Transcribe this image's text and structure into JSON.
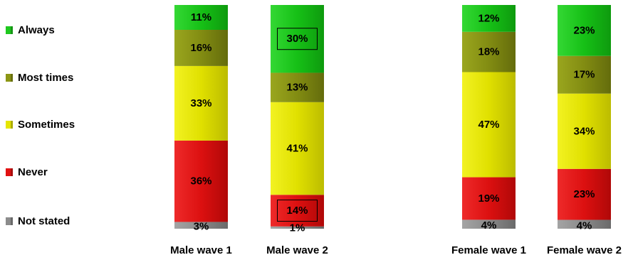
{
  "chart_data": {
    "type": "bar",
    "stacked": true,
    "percent": true,
    "categories": [
      "Male wave 1",
      "Male wave 2",
      "Female wave 1",
      "Female wave 2"
    ],
    "series": [
      {
        "name": "Not stated",
        "color": "#8c8c8c",
        "values": [
          3,
          1,
          4,
          4
        ],
        "labels": [
          "3%",
          "1%",
          "4%",
          "4%"
        ]
      },
      {
        "name": "Never",
        "color": "#e11212",
        "values": [
          36,
          14,
          19,
          23
        ],
        "labels": [
          "36%",
          "14%",
          "19%",
          "23%"
        ]
      },
      {
        "name": "Sometimes",
        "color": "#e6e600",
        "values": [
          33,
          41,
          47,
          34
        ],
        "labels": [
          "33%",
          "41%",
          "47%",
          "34%"
        ]
      },
      {
        "name": "Most times",
        "color": "#8c9614",
        "values": [
          16,
          13,
          18,
          17
        ],
        "labels": [
          "16%",
          "13%",
          "18%",
          "17%"
        ]
      },
      {
        "name": "Always",
        "color": "#1ec81e",
        "values": [
          11,
          30,
          12,
          23
        ],
        "labels": [
          "11%",
          "30%",
          "12%",
          "23%"
        ]
      }
    ],
    "boxed_labels": [
      {
        "category": "Male wave 2",
        "series": "Always"
      },
      {
        "category": "Male wave 2",
        "series": "Never"
      }
    ],
    "legend": {
      "position": "left",
      "items": [
        {
          "label": "Always",
          "color": "#1ec81e"
        },
        {
          "label": "Most times",
          "color": "#8c9614"
        },
        {
          "label": "Sometimes",
          "color": "#e6e600"
        },
        {
          "label": "Never",
          "color": "#e11212"
        },
        {
          "label": "Not stated",
          "color": "#8c8c8c"
        }
      ]
    },
    "ylim": [
      0,
      100
    ],
    "grid": false,
    "title": "",
    "xlabel": "",
    "ylabel": ""
  }
}
